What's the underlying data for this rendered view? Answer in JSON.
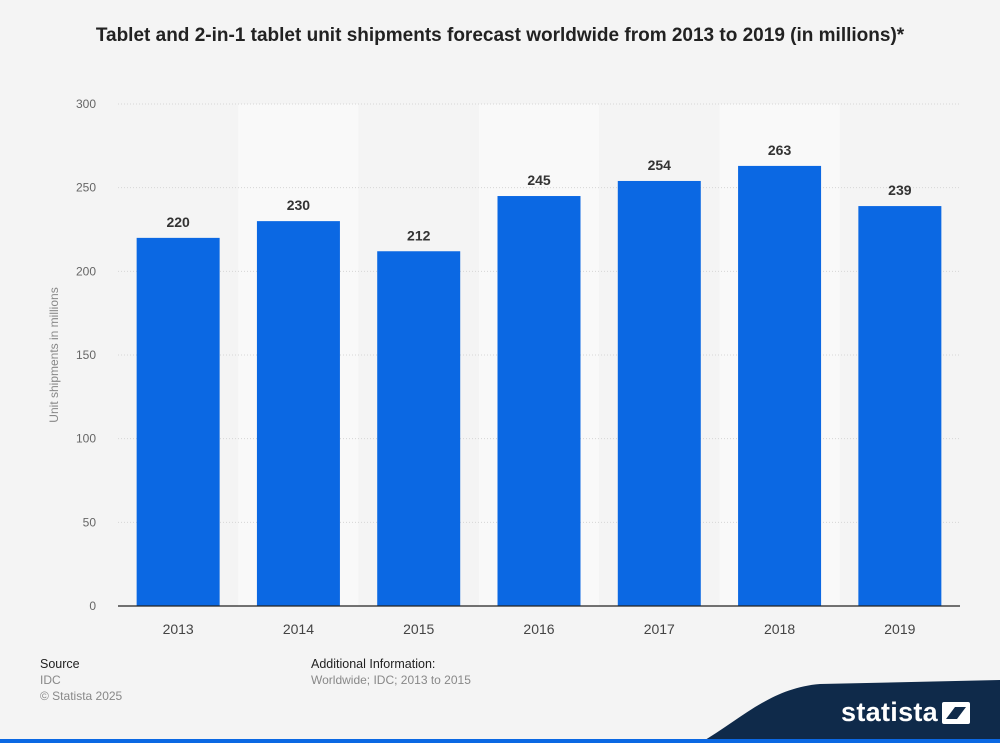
{
  "page": {
    "title": "Tablet and 2-in-1 tablet unit shipments forecast worldwide from 2013 to 2019 (in millions)*"
  },
  "footer": {
    "source_heading": "Source",
    "source_name": "IDC",
    "copyright": "© Statista 2025",
    "info_heading": "Additional Information:",
    "info_text": "Worldwide; IDC; 2013 to 2015"
  },
  "logo": {
    "text": "statista",
    "icon": "statista-logo-icon"
  },
  "colors": {
    "bar": "#0b68e3",
    "band_bg": "#f9f9f9",
    "page_bg": "#f4f4f4",
    "logo_bg": "#0f2a4a"
  },
  "chart_data": {
    "type": "bar",
    "title": "Tablet and 2-in-1 tablet unit shipments forecast worldwide from 2013 to 2019 (in millions)*",
    "categories": [
      "2013",
      "2014",
      "2015",
      "2016",
      "2017",
      "2018",
      "2019"
    ],
    "values": [
      220,
      230,
      212,
      245,
      254,
      263,
      239
    ],
    "xlabel": "",
    "ylabel": "Unit shipments in millions",
    "ylim": [
      0,
      300
    ],
    "yticks": [
      0,
      50,
      100,
      150,
      200,
      250,
      300
    ],
    "grid": true,
    "data_labels": true,
    "legend": "none"
  }
}
